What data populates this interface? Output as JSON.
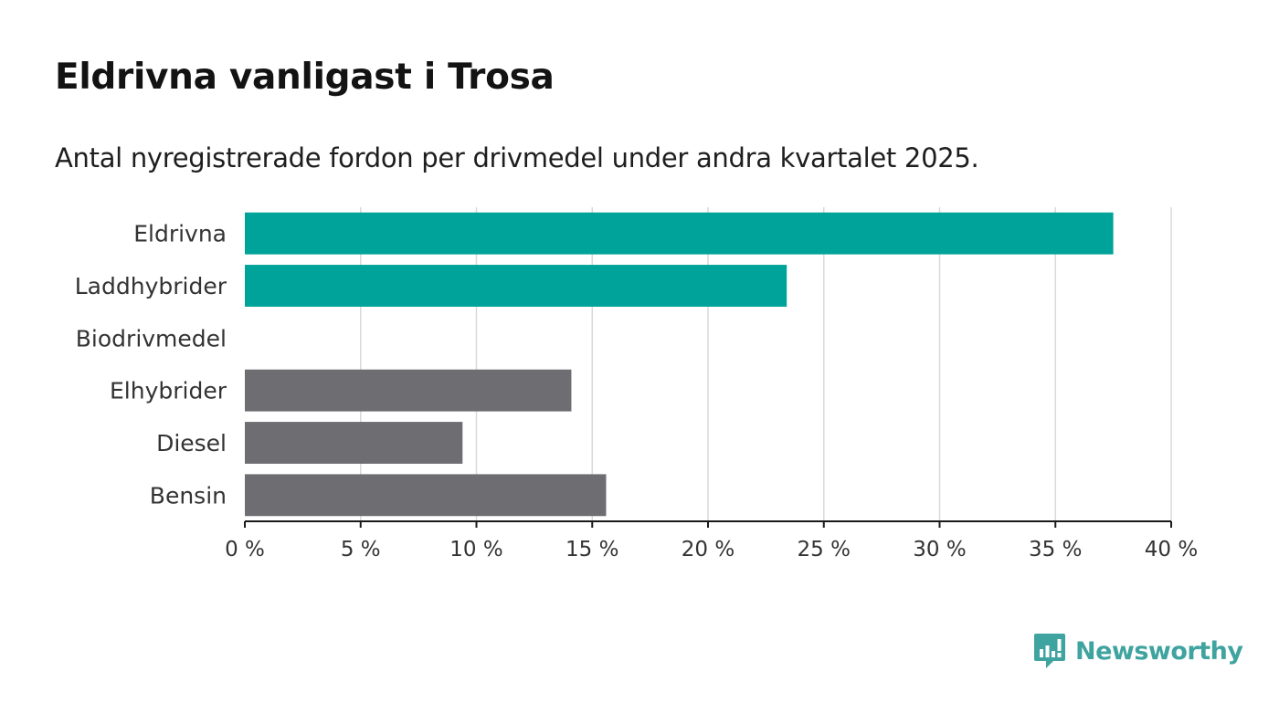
{
  "title": "Eldrivna vanligast i Trosa",
  "subtitle": "Antal nyregistrerade fordon per drivmedel under andra kvartalet 2025.",
  "brand": {
    "name": "Newsworthy",
    "color": "#3fa3a0",
    "icon": "newsworthy-logo-icon"
  },
  "colors": {
    "highlight": "#00a39a",
    "other": "#6e6d72",
    "grid": "#d9d9d9",
    "axis": "#1a1a1a",
    "text": "#333333"
  },
  "chart_data": {
    "type": "bar",
    "orientation": "horizontal",
    "categories": [
      "Eldrivna",
      "Laddhybrider",
      "Biodrivmedel",
      "Elhybrider",
      "Diesel",
      "Bensin"
    ],
    "values": [
      37.5,
      23.4,
      0,
      14.1,
      9.4,
      15.6
    ],
    "highlight": [
      true,
      true,
      true,
      false,
      false,
      false
    ],
    "xlim": [
      0,
      40
    ],
    "xticks": [
      0,
      5,
      10,
      15,
      20,
      25,
      30,
      35,
      40
    ],
    "xtick_labels": [
      "0 %",
      "5 %",
      "10 %",
      "15 %",
      "20 %",
      "25 %",
      "30 %",
      "35 %",
      "40 %"
    ],
    "grid": true
  }
}
